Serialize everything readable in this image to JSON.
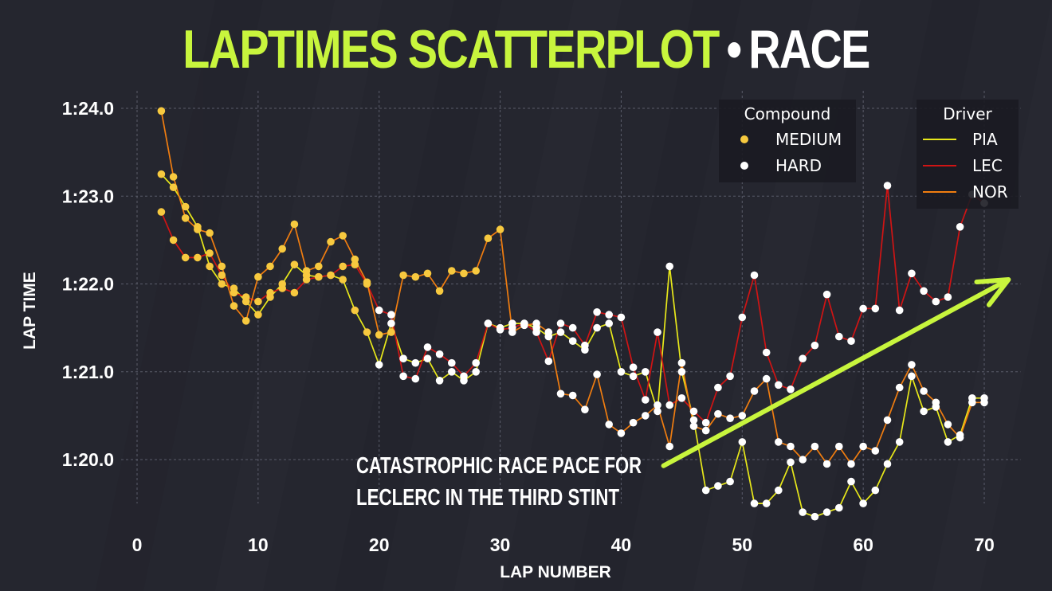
{
  "header": {
    "title_main": "LAPTIMES SCATTERPLOT",
    "title_separator": "•",
    "title_session": "RACE"
  },
  "colors": {
    "background": "#25262f",
    "accent_green": "#c8f53d",
    "medium": "#f7c93f",
    "hard": "#ffffff",
    "pia": "#e8e81a",
    "lec": "#d01414",
    "nor": "#f07d10",
    "grid": "#5a5c6a"
  },
  "chart_data": {
    "type": "scatter",
    "xlabel": "LAP NUMBER",
    "ylabel": "LAP TIME",
    "xlim": [
      0,
      73
    ],
    "ylim": [
      79.5,
      84.2
    ],
    "x_ticks": [
      0,
      10,
      20,
      30,
      40,
      50,
      60,
      70
    ],
    "y_ticks": [
      {
        "value": 80,
        "label": "1:20.0"
      },
      {
        "value": 81,
        "label": "1:21.0"
      },
      {
        "value": 82,
        "label": "1:22.0"
      },
      {
        "value": 83,
        "label": "1:23.0"
      },
      {
        "value": 84,
        "label": "1:24.0"
      }
    ],
    "grid": true,
    "legend_compound": {
      "title": "Compound",
      "placement": "top-right",
      "entries": [
        {
          "name": "MEDIUM",
          "color": "#f7c93f"
        },
        {
          "name": "HARD",
          "color": "#ffffff"
        }
      ]
    },
    "legend_driver": {
      "title": "Driver",
      "placement": "top-right",
      "entries": [
        {
          "name": "PIA",
          "color": "#e8e81a"
        },
        {
          "name": "LEC",
          "color": "#d01414"
        },
        {
          "name": "NOR",
          "color": "#f07d10"
        }
      ]
    },
    "annotation": {
      "lines": [
        "CATASTROPHIC RACE PACE FOR",
        "LECLERC IN THE THIRD STINT"
      ],
      "arrow_from": [
        43.5,
        79.93
      ],
      "arrow_to": [
        72,
        82.05
      ]
    },
    "series": [
      {
        "name": "PIA",
        "color": "#e8e81a",
        "x": [
          2,
          3,
          4,
          5,
          6,
          7,
          8,
          9,
          10,
          11,
          12,
          13,
          14,
          15,
          16,
          17,
          18,
          19,
          20,
          21,
          22,
          23,
          24,
          25,
          26,
          27,
          28,
          29,
          30,
          31,
          32,
          33,
          34,
          35,
          36,
          37,
          38,
          39,
          40,
          41,
          42,
          43,
          44,
          45,
          46,
          47,
          48,
          49,
          50,
          51,
          52,
          53,
          54,
          55,
          56,
          57,
          58,
          59,
          60,
          61,
          62,
          63,
          64,
          65,
          66,
          67,
          68,
          69,
          70
        ],
        "y": [
          83.25,
          83.1,
          82.88,
          82.65,
          82.2,
          82.0,
          81.95,
          81.8,
          81.65,
          81.85,
          82.0,
          82.22,
          82.1,
          82.08,
          82.1,
          82.05,
          81.7,
          81.45,
          81.08,
          81.55,
          81.15,
          81.1,
          81.15,
          80.9,
          81.0,
          80.9,
          81.0,
          81.55,
          81.5,
          81.55,
          81.55,
          81.5,
          81.4,
          81.45,
          81.35,
          81.25,
          81.5,
          81.55,
          81.0,
          80.95,
          81.0,
          80.55,
          82.2,
          81.0,
          80.45,
          79.65,
          79.7,
          79.75,
          80.2,
          79.5,
          79.5,
          79.65,
          79.97,
          79.4,
          79.35,
          79.4,
          79.45,
          79.75,
          79.5,
          79.65,
          79.95,
          80.2,
          80.95,
          80.55,
          80.6,
          80.2,
          80.28,
          80.7,
          80.7
        ],
        "compound": [
          "M",
          "M",
          "M",
          "M",
          "M",
          "M",
          "M",
          "M",
          "M",
          "M",
          "M",
          "M",
          "M",
          "M",
          "M",
          "M",
          "M",
          "M",
          "H",
          "H",
          "H",
          "H",
          "H",
          "H",
          "H",
          "H",
          "H",
          "H",
          "H",
          "H",
          "H",
          "H",
          "H",
          "H",
          "H",
          "H",
          "H",
          "H",
          "H",
          "H",
          "H",
          "H",
          "H",
          "H",
          "H",
          "H",
          "H",
          "H",
          "H",
          "H",
          "H",
          "H",
          "H",
          "H",
          "H",
          "H",
          "H",
          "H",
          "H",
          "H",
          "H",
          "H",
          "H",
          "H",
          "H",
          "H",
          "H",
          "H",
          "H"
        ]
      },
      {
        "name": "LEC",
        "color": "#d01414",
        "x": [
          2,
          3,
          4,
          5,
          6,
          7,
          8,
          9,
          10,
          11,
          12,
          13,
          14,
          15,
          16,
          17,
          18,
          19,
          20,
          21,
          22,
          23,
          24,
          25,
          26,
          27,
          28,
          29,
          30,
          31,
          32,
          33,
          34,
          35,
          36,
          37,
          38,
          39,
          40,
          41,
          42,
          43,
          44,
          45,
          46,
          47,
          48,
          49,
          50,
          51,
          52,
          53,
          54,
          55,
          56,
          57,
          58,
          59,
          60,
          61,
          62,
          63,
          64,
          65,
          66,
          67,
          68,
          69,
          70
        ],
        "y": [
          82.82,
          82.5,
          82.3,
          82.3,
          82.35,
          82.1,
          81.9,
          81.85,
          81.8,
          81.9,
          81.95,
          81.9,
          82.05,
          82.08,
          82.1,
          82.2,
          82.22,
          82.0,
          81.7,
          81.65,
          80.95,
          80.92,
          81.28,
          81.2,
          81.1,
          80.95,
          81.1,
          81.55,
          81.48,
          81.5,
          81.55,
          81.45,
          81.12,
          81.55,
          81.5,
          81.3,
          81.68,
          81.65,
          81.62,
          81.05,
          80.68,
          81.45,
          80.62,
          80.7,
          80.55,
          80.42,
          80.82,
          80.95,
          81.62,
          82.1,
          81.22,
          80.85,
          80.8,
          81.15,
          81.3,
          81.88,
          81.4,
          81.35,
          81.72,
          81.72,
          83.12,
          81.7,
          82.12,
          81.92,
          81.8,
          81.85,
          82.65,
          83.02,
          82.92
        ],
        "compound": [
          "M",
          "M",
          "M",
          "M",
          "M",
          "M",
          "M",
          "M",
          "M",
          "M",
          "M",
          "M",
          "M",
          "M",
          "M",
          "M",
          "M",
          "M",
          "H",
          "H",
          "H",
          "H",
          "H",
          "H",
          "H",
          "H",
          "H",
          "H",
          "H",
          "H",
          "H",
          "H",
          "H",
          "H",
          "H",
          "H",
          "H",
          "H",
          "H",
          "H",
          "H",
          "H",
          "H",
          "H",
          "H",
          "H",
          "H",
          "H",
          "H",
          "H",
          "H",
          "H",
          "H",
          "H",
          "H",
          "H",
          "H",
          "H",
          "H",
          "H",
          "H",
          "H",
          "H",
          "H",
          "H",
          "H",
          "H",
          "H",
          "H"
        ]
      },
      {
        "name": "NOR",
        "color": "#f07d10",
        "x": [
          2,
          3,
          4,
          5,
          6,
          7,
          8,
          9,
          10,
          11,
          12,
          13,
          14,
          15,
          16,
          17,
          18,
          19,
          20,
          21,
          22,
          23,
          24,
          25,
          26,
          27,
          28,
          29,
          30,
          31,
          32,
          33,
          34,
          35,
          36,
          37,
          38,
          39,
          40,
          41,
          42,
          43,
          44,
          45,
          46,
          47,
          48,
          49,
          50,
          51,
          52,
          53,
          54,
          55,
          56,
          57,
          58,
          59,
          60,
          61,
          62,
          63,
          64,
          65,
          66,
          67,
          68,
          69,
          70
        ],
        "y": [
          83.97,
          83.22,
          82.75,
          82.62,
          82.58,
          82.2,
          81.75,
          81.58,
          82.08,
          82.2,
          82.4,
          82.68,
          82.15,
          82.2,
          82.48,
          82.55,
          82.28,
          82.02,
          81.42,
          81.45,
          82.1,
          82.08,
          82.12,
          81.92,
          82.15,
          82.12,
          82.15,
          82.52,
          82.62,
          81.45,
          81.53,
          81.55,
          81.45,
          80.75,
          80.73,
          80.57,
          80.97,
          80.4,
          80.3,
          80.42,
          80.5,
          80.62,
          80.15,
          81.1,
          80.38,
          80.33,
          80.52,
          80.47,
          80.5,
          80.78,
          80.92,
          80.2,
          80.15,
          80.0,
          80.15,
          79.95,
          80.15,
          79.95,
          80.15,
          80.1,
          80.45,
          80.82,
          81.08,
          80.78,
          80.65,
          80.4,
          80.25,
          80.65,
          80.65
        ],
        "compound": [
          "M",
          "M",
          "M",
          "M",
          "M",
          "M",
          "M",
          "M",
          "M",
          "M",
          "M",
          "M",
          "M",
          "M",
          "M",
          "M",
          "M",
          "M",
          "M",
          "M",
          "M",
          "M",
          "M",
          "M",
          "M",
          "M",
          "M",
          "M",
          "M",
          "H",
          "H",
          "H",
          "H",
          "H",
          "H",
          "H",
          "H",
          "H",
          "H",
          "H",
          "H",
          "H",
          "H",
          "H",
          "H",
          "H",
          "H",
          "H",
          "H",
          "H",
          "H",
          "H",
          "H",
          "H",
          "H",
          "H",
          "H",
          "H",
          "H",
          "H",
          "H",
          "H",
          "H",
          "H",
          "H",
          "H",
          "H",
          "H",
          "H"
        ]
      }
    ]
  }
}
